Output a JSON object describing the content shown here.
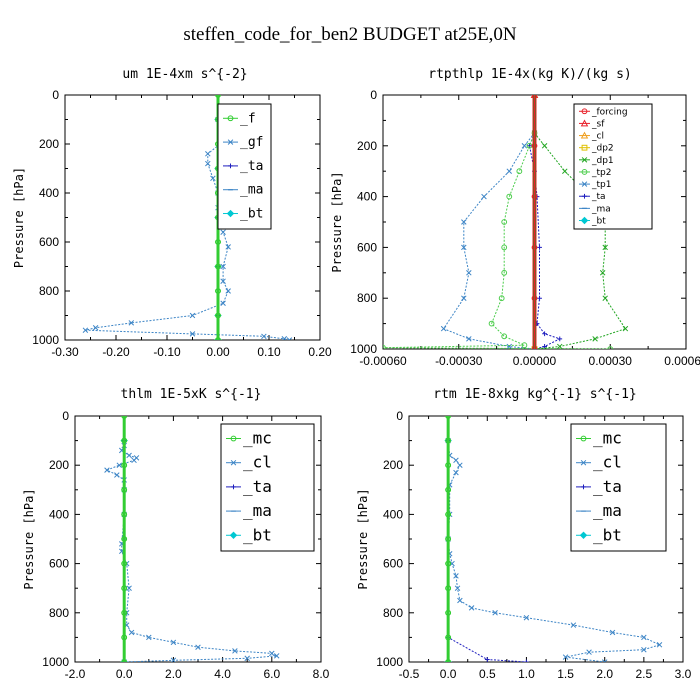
{
  "figure_title": "steffen_code_for_ben2  BUDGET at25E,0N",
  "chart_data": [
    {
      "type": "line",
      "title": "um   1E-4xm s^{-2}",
      "ylabel": "Pressure [hPa]",
      "xlim": [
        -0.3,
        0.2
      ],
      "ylim": [
        1000,
        0
      ],
      "xticks": [
        "-0.30",
        "-0.20",
        "-0.10",
        "0.00",
        "0.10",
        "0.20"
      ],
      "xtick_values": [
        -0.3,
        -0.2,
        -0.1,
        0.0,
        0.1,
        0.2
      ],
      "yticks": [
        "0",
        "200",
        "400",
        "600",
        "800",
        "1000"
      ],
      "ytick_values": [
        0,
        200,
        400,
        600,
        800,
        1000
      ],
      "legend_size": "small",
      "series": [
        {
          "name": "_f",
          "color": "#32cd32",
          "marker": "circle",
          "points": [
            [
              0.0,
              0
            ],
            [
              0.0,
              100
            ],
            [
              0.0,
              200
            ],
            [
              0.0,
              300
            ],
            [
              0.0,
              400
            ],
            [
              0.0,
              500
            ],
            [
              0.0,
              600
            ],
            [
              0.0,
              700
            ],
            [
              0.0,
              800
            ],
            [
              0.0,
              900
            ],
            [
              0.0,
              1000
            ]
          ]
        },
        {
          "name": "_gf",
          "color": "#3d85c6",
          "marker": "x",
          "points": [
            [
              0.0,
              100
            ],
            [
              0.01,
              120
            ],
            [
              0.02,
              160
            ],
            [
              0.01,
              190
            ],
            [
              -0.02,
              240
            ],
            [
              -0.02,
              280
            ],
            [
              -0.01,
              340
            ],
            [
              0.0,
              400
            ],
            [
              0.0,
              460
            ],
            [
              0.01,
              560
            ],
            [
              0.02,
              620
            ],
            [
              0.01,
              700
            ],
            [
              0.01,
              760
            ],
            [
              0.02,
              800
            ],
            [
              0.01,
              850
            ],
            [
              -0.05,
              900
            ],
            [
              -0.17,
              930
            ],
            [
              -0.24,
              950
            ],
            [
              -0.26,
              960
            ],
            [
              -0.05,
              975
            ],
            [
              0.09,
              985
            ],
            [
              0.13,
              995
            ],
            [
              0.14,
              1000
            ]
          ]
        },
        {
          "name": "_ta",
          "color": "#1f1fbf",
          "marker": "plus",
          "points": [
            [
              0.0,
              100
            ],
            [
              0.0,
              300
            ],
            [
              0.0,
              500
            ],
            [
              0.0,
              700
            ],
            [
              0.0,
              900
            ],
            [
              0.0,
              1000
            ]
          ]
        },
        {
          "name": "_ma",
          "color": "#3d85c6",
          "marker": "dash",
          "points": [
            [
              0.0,
              100
            ],
            [
              0.0,
              500
            ],
            [
              0.0,
              1000
            ]
          ]
        },
        {
          "name": "_bt",
          "color": "#00c8d2",
          "marker": "diamond",
          "points": [
            [
              0.0,
              100
            ],
            [
              0.0,
              300
            ],
            [
              0.0,
              500
            ],
            [
              0.0,
              700
            ],
            [
              0.0,
              900
            ],
            [
              0.0,
              1000
            ]
          ]
        }
      ]
    },
    {
      "type": "line",
      "title": "rtpthlp   1E-4x(kg K)/(kg s)",
      "ylabel": "Pressure [hPa]",
      "xlim": [
        -0.0006,
        0.0006
      ],
      "ylim": [
        1000,
        0
      ],
      "xticks": [
        "-0.00060",
        "-0.00030",
        "0.00000",
        "0.00030",
        "0.00060"
      ],
      "xtick_values": [
        -0.0006,
        -0.0003,
        0.0,
        0.0003,
        0.0006
      ],
      "yticks": [
        "0",
        "200",
        "400",
        "600",
        "800",
        "1000"
      ],
      "ytick_values": [
        0,
        200,
        400,
        600,
        800,
        1000
      ],
      "legend_size": "tiny",
      "series": [
        {
          "name": "_forcing",
          "color": "#e8202a",
          "marker": "circle",
          "points": [
            [
              0.0,
              0
            ],
            [
              0.0,
              200
            ],
            [
              0.0,
              400
            ],
            [
              0.0,
              600
            ],
            [
              0.0,
              800
            ],
            [
              0.0,
              1000
            ]
          ]
        },
        {
          "name": "_sf",
          "color": "#e8202a",
          "marker": "triangle",
          "points": [
            [
              0.0,
              0
            ],
            [
              0.0,
              1000
            ]
          ]
        },
        {
          "name": "_cl",
          "color": "#f0a020",
          "marker": "triangle",
          "points": [
            [
              0.0,
              0
            ],
            [
              0.0,
              1000
            ]
          ]
        },
        {
          "name": "_dp2",
          "color": "#e0c000",
          "marker": "square",
          "points": [
            [
              0.0,
              0
            ],
            [
              0.0,
              1000
            ]
          ]
        },
        {
          "name": "_dp1",
          "color": "#22a622",
          "marker": "x",
          "points": [
            [
              0.0,
              150
            ],
            [
              4e-05,
              200
            ],
            [
              0.00012,
              300
            ],
            [
              0.00022,
              400
            ],
            [
              0.00028,
              500
            ],
            [
              0.00028,
              600
            ],
            [
              0.00027,
              700
            ],
            [
              0.00028,
              800
            ],
            [
              0.00036,
              920
            ],
            [
              0.00024,
              960
            ],
            [
              0.0001,
              990
            ],
            [
              0.0,
              1000
            ]
          ]
        },
        {
          "name": "_tp2",
          "color": "#4ccd4c",
          "marker": "circle",
          "points": [
            [
              0.0,
              150
            ],
            [
              -2e-05,
              200
            ],
            [
              -6e-05,
              300
            ],
            [
              -0.0001,
              400
            ],
            [
              -0.00012,
              500
            ],
            [
              -0.00012,
              600
            ],
            [
              -0.00012,
              700
            ],
            [
              -0.00013,
              800
            ],
            [
              -0.00017,
              900
            ],
            [
              -0.00012,
              950
            ],
            [
              -4e-05,
              985
            ],
            [
              -0.0006,
              995
            ],
            [
              0.0003,
              1000
            ]
          ]
        },
        {
          "name": "_tp1",
          "color": "#3d85c6",
          "marker": "x",
          "points": [
            [
              0.0,
              150
            ],
            [
              -4e-05,
              200
            ],
            [
              -0.0001,
              300
            ],
            [
              -0.0002,
              400
            ],
            [
              -0.00028,
              500
            ],
            [
              -0.00028,
              600
            ],
            [
              -0.00026,
              700
            ],
            [
              -0.00028,
              800
            ],
            [
              -0.00036,
              920
            ],
            [
              -0.00026,
              960
            ],
            [
              -0.0001,
              990
            ],
            [
              0.0,
              1000
            ]
          ]
        },
        {
          "name": "_ta",
          "color": "#1f1fbf",
          "marker": "plus",
          "points": [
            [
              0.0,
              150
            ],
            [
              -2e-05,
              200
            ],
            [
              0.0,
              300
            ],
            [
              1e-05,
              400
            ],
            [
              2e-05,
              600
            ],
            [
              2e-05,
              800
            ],
            [
              1e-05,
              900
            ],
            [
              4e-05,
              940
            ],
            [
              0.0001,
              960
            ],
            [
              4e-05,
              990
            ],
            [
              0.0,
              1000
            ]
          ]
        },
        {
          "name": "_ma",
          "color": "#3d85c6",
          "marker": "dash",
          "points": [
            [
              0.0,
              0
            ],
            [
              0.0,
              1000
            ]
          ]
        },
        {
          "name": "_bt",
          "color": "#00c8d2",
          "marker": "diamond",
          "points": [
            [
              0.0,
              0
            ],
            [
              0.0,
              1000
            ]
          ]
        }
      ]
    },
    {
      "type": "line",
      "title": "thlm   1E-5xK  s^{-1}",
      "ylabel": "Pressure [hPa]",
      "xlim": [
        -2.0,
        8.0
      ],
      "ylim": [
        1000,
        0
      ],
      "xticks": [
        "-2.0",
        "0.0",
        "2.0",
        "4.0",
        "6.0",
        "8.0"
      ],
      "xtick_values": [
        -2.0,
        0.0,
        2.0,
        4.0,
        6.0,
        8.0
      ],
      "yticks": [
        "0",
        "200",
        "400",
        "600",
        "800",
        "1000"
      ],
      "ytick_values": [
        0,
        200,
        400,
        600,
        800,
        1000
      ],
      "legend_size": "large",
      "series": [
        {
          "name": "_mc",
          "color": "#32cd32",
          "marker": "circle",
          "points": [
            [
              0.0,
              0
            ],
            [
              0.0,
              100
            ],
            [
              0.0,
              200
            ],
            [
              0.0,
              300
            ],
            [
              0.0,
              400
            ],
            [
              0.0,
              500
            ],
            [
              0.0,
              600
            ],
            [
              0.0,
              700
            ],
            [
              0.0,
              800
            ],
            [
              0.0,
              900
            ],
            [
              0.0,
              1000
            ]
          ]
        },
        {
          "name": "_cl",
          "color": "#3d85c6",
          "marker": "x",
          "points": [
            [
              0.0,
              120
            ],
            [
              -0.1,
              140
            ],
            [
              0.2,
              160
            ],
            [
              0.5,
              170
            ],
            [
              0.4,
              180
            ],
            [
              -0.2,
              200
            ],
            [
              -0.7,
              220
            ],
            [
              -0.3,
              240
            ],
            [
              0.0,
              260
            ],
            [
              0.0,
              300
            ],
            [
              0.0,
              400
            ],
            [
              -0.1,
              520
            ],
            [
              -0.1,
              550
            ],
            [
              0.1,
              600
            ],
            [
              0.2,
              700
            ],
            [
              0.1,
              800
            ],
            [
              0.1,
              850
            ],
            [
              0.3,
              880
            ],
            [
              1.0,
              900
            ],
            [
              2.0,
              920
            ],
            [
              3.0,
              940
            ],
            [
              4.5,
              955
            ],
            [
              6.0,
              965
            ],
            [
              6.2,
              975
            ],
            [
              5.0,
              985
            ],
            [
              2.0,
              993
            ],
            [
              0.0,
              1000
            ]
          ]
        },
        {
          "name": "_ta",
          "color": "#1f1fbf",
          "marker": "plus",
          "points": [
            [
              0.0,
              100
            ],
            [
              0.0,
              500
            ],
            [
              0.0,
              1000
            ]
          ]
        },
        {
          "name": "_ma",
          "color": "#3d85c6",
          "marker": "dash",
          "points": [
            [
              0.0,
              100
            ],
            [
              0.0,
              1000
            ]
          ]
        },
        {
          "name": "_bt",
          "color": "#00c8d2",
          "marker": "diamond",
          "points": [
            [
              0.0,
              100
            ],
            [
              0.0,
              1000
            ]
          ]
        }
      ]
    },
    {
      "type": "line",
      "title": "rtm   1E-8xkg kg^{-1} s^{-1}",
      "ylabel": "Pressure [hPa]",
      "xlim": [
        -0.5,
        3.0
      ],
      "ylim": [
        1000,
        0
      ],
      "xticks": [
        "-0.5",
        "0.0",
        "0.5",
        "1.0",
        "1.5",
        "2.0",
        "2.5",
        "3.0"
      ],
      "xtick_values": [
        -0.5,
        0.0,
        0.5,
        1.0,
        1.5,
        2.0,
        2.5,
        3.0
      ],
      "yticks": [
        "0",
        "200",
        "400",
        "600",
        "800",
        "1000"
      ],
      "ytick_values": [
        0,
        200,
        400,
        600,
        800,
        1000
      ],
      "legend_size": "large",
      "series": [
        {
          "name": "_mc",
          "color": "#32cd32",
          "marker": "circle",
          "points": [
            [
              0.0,
              0
            ],
            [
              0.0,
              100
            ],
            [
              0.0,
              200
            ],
            [
              0.0,
              300
            ],
            [
              0.0,
              400
            ],
            [
              0.0,
              500
            ],
            [
              0.0,
              600
            ],
            [
              0.0,
              700
            ],
            [
              0.0,
              800
            ],
            [
              0.0,
              900
            ],
            [
              0.0,
              1000
            ]
          ]
        },
        {
          "name": "_cl",
          "color": "#3d85c6",
          "marker": "x",
          "points": [
            [
              0.0,
              100
            ],
            [
              0.02,
              160
            ],
            [
              0.1,
              180
            ],
            [
              0.15,
              200
            ],
            [
              0.1,
              230
            ],
            [
              0.02,
              280
            ],
            [
              0.02,
              400
            ],
            [
              0.0,
              500
            ],
            [
              0.02,
              560
            ],
            [
              0.05,
              600
            ],
            [
              0.1,
              650
            ],
            [
              0.12,
              700
            ],
            [
              0.15,
              750
            ],
            [
              0.3,
              780
            ],
            [
              0.6,
              800
            ],
            [
              1.0,
              820
            ],
            [
              1.6,
              850
            ],
            [
              2.1,
              880
            ],
            [
              2.5,
              900
            ],
            [
              2.7,
              930
            ],
            [
              2.5,
              950
            ],
            [
              1.8,
              960
            ],
            [
              1.5,
              980
            ],
            [
              2.0,
              1000
            ]
          ]
        },
        {
          "name": "_ta",
          "color": "#1f1fbf",
          "marker": "plus",
          "points": [
            [
              0.0,
              100
            ],
            [
              0.0,
              900
            ],
            [
              0.5,
              990
            ],
            [
              1.0,
              1000
            ]
          ]
        },
        {
          "name": "_ma",
          "color": "#3d85c6",
          "marker": "dash",
          "points": [
            [
              0.0,
              100
            ],
            [
              0.0,
              1000
            ]
          ]
        },
        {
          "name": "_bt",
          "color": "#00c8d2",
          "marker": "diamond",
          "points": [
            [
              0.0,
              100
            ],
            [
              0.0,
              1000
            ]
          ]
        }
      ]
    }
  ]
}
